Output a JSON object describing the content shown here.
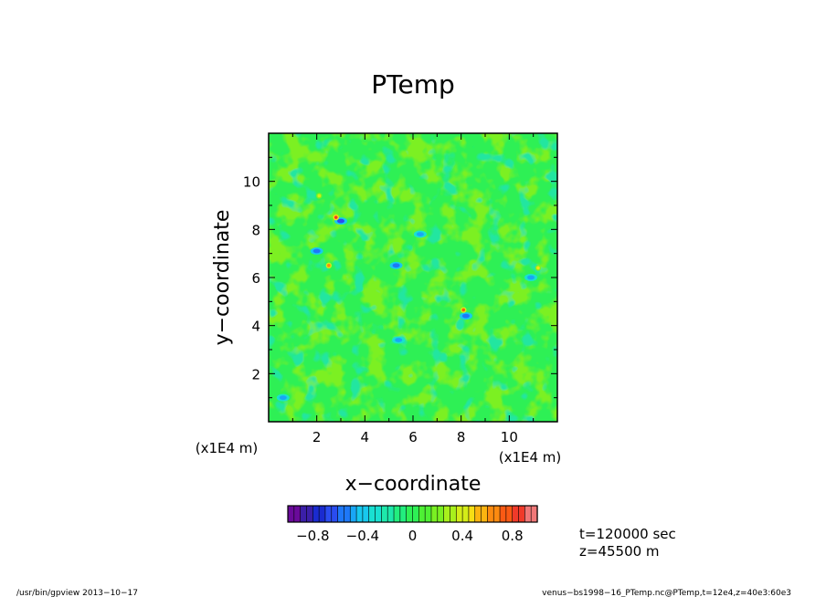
{
  "chart_data": {
    "type": "heatmap",
    "title": "PTemp",
    "xlabel": "x−coordinate",
    "ylabel": "y−coordinate",
    "x_scale_note": "(x1E4 m)",
    "y_scale_note": "(x1E4 m)",
    "xlim": [
      0,
      12
    ],
    "ylim": [
      0,
      12
    ],
    "x_ticks": [
      "2",
      "4",
      "6",
      "8",
      "10"
    ],
    "y_ticks": [
      "2",
      "4",
      "6",
      "8",
      "10"
    ],
    "grid": false,
    "field": {
      "background_value": 0.0,
      "variability": "small-scale turbulent eddies, values mostly between -0.5 and 0.2",
      "cold_spots": [
        {
          "x": 3.0,
          "y": 8.35,
          "value": -0.7
        },
        {
          "x": 2.0,
          "y": 7.1,
          "value": -0.6
        },
        {
          "x": 5.3,
          "y": 6.5,
          "value": -0.6
        },
        {
          "x": 8.2,
          "y": 4.4,
          "value": -0.6
        },
        {
          "x": 10.9,
          "y": 6.0,
          "value": -0.5
        },
        {
          "x": 6.3,
          "y": 7.8,
          "value": -0.5
        },
        {
          "x": 5.4,
          "y": 3.4,
          "value": -0.5
        },
        {
          "x": 0.6,
          "y": 1.0,
          "value": -0.5
        }
      ],
      "warm_spots": [
        {
          "x": 2.8,
          "y": 8.5,
          "value": 0.9
        },
        {
          "x": 2.5,
          "y": 6.5,
          "value": 0.7
        },
        {
          "x": 8.1,
          "y": 4.65,
          "value": 0.8
        },
        {
          "x": 11.2,
          "y": 6.4,
          "value": 0.45
        },
        {
          "x": 2.1,
          "y": 9.4,
          "value": 0.4
        }
      ]
    },
    "colorbar": {
      "range": [
        -1.0,
        1.0
      ],
      "step": 0.05,
      "tick_labels": [
        "−0.8",
        "−0.4",
        "0",
        "0.4",
        "0.8"
      ],
      "tick_values": [
        -0.8,
        -0.4,
        0,
        0.4,
        0.8
      ],
      "palette": [
        "#6a0a9a",
        "#3b1fa8",
        "#1a2bd0",
        "#2a4cf0",
        "#1e78f8",
        "#19a6f5",
        "#18c8ee",
        "#19e0d2",
        "#1ee8ab",
        "#22ee7e",
        "#2ef055",
        "#4ef034",
        "#7af022",
        "#a8f01c",
        "#d4ec18",
        "#f6de14",
        "#fcb410",
        "#fc8a10",
        "#fa5a14",
        "#f03a2a",
        "#f07878"
      ]
    }
  },
  "annotations": {
    "time": "t=120000 sec",
    "height": "z=45500 m",
    "footer_left": "/usr/bin/gpview   2013−10−17",
    "footer_right": "venus−bs1998−16_PTemp.nc@PTemp,t=12e4,z=40e3:60e3"
  }
}
